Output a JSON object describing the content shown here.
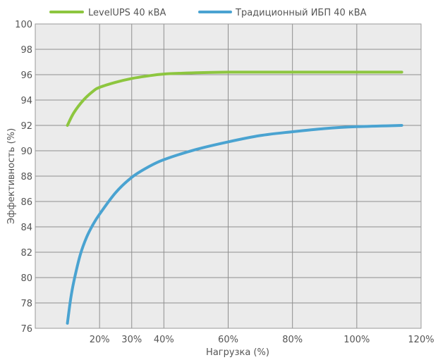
{
  "chart_data": {
    "type": "line",
    "xlabel": "Нагрузка (%)",
    "ylabel": "Эффективность (%)",
    "xlim": [
      0,
      120
    ],
    "ylim": [
      76,
      100
    ],
    "grid": true,
    "legend_position": "top",
    "x_ticks": [
      {
        "value": 20,
        "label": "20%"
      },
      {
        "value": 30,
        "label": "30%"
      },
      {
        "value": 40,
        "label": "40%"
      },
      {
        "value": 60,
        "label": "60%"
      },
      {
        "value": 80,
        "label": "80%"
      },
      {
        "value": 100,
        "label": "100%"
      },
      {
        "value": 120,
        "label": "120%"
      }
    ],
    "vertical_gridlines": [
      20,
      30,
      40,
      60,
      80,
      100
    ],
    "y_ticks": [
      76,
      78,
      80,
      82,
      84,
      86,
      88,
      90,
      92,
      94,
      96,
      98,
      100
    ],
    "series": [
      {
        "name": "LevelUPS 40 кВА",
        "color": "#8dc63f",
        "x": [
          10,
          12,
          15,
          18,
          20,
          25,
          30,
          35,
          40,
          50,
          60,
          70,
          80,
          90,
          100,
          114
        ],
        "y": [
          92.0,
          93.0,
          94.0,
          94.7,
          95.0,
          95.4,
          95.7,
          95.9,
          96.05,
          96.15,
          96.2,
          96.2,
          96.2,
          96.2,
          96.2,
          96.2
        ]
      },
      {
        "name": "Традиционный ИБП 40 кВА",
        "color": "#4aa3d1",
        "x": [
          10,
          11,
          12,
          14,
          16,
          18,
          20,
          25,
          30,
          35,
          40,
          50,
          60,
          70,
          80,
          90,
          100,
          114
        ],
        "y": [
          76.4,
          78.3,
          79.7,
          81.8,
          83.2,
          84.2,
          85.0,
          86.7,
          87.9,
          88.7,
          89.3,
          90.1,
          90.7,
          91.2,
          91.5,
          91.75,
          91.9,
          92.0
        ]
      }
    ]
  }
}
